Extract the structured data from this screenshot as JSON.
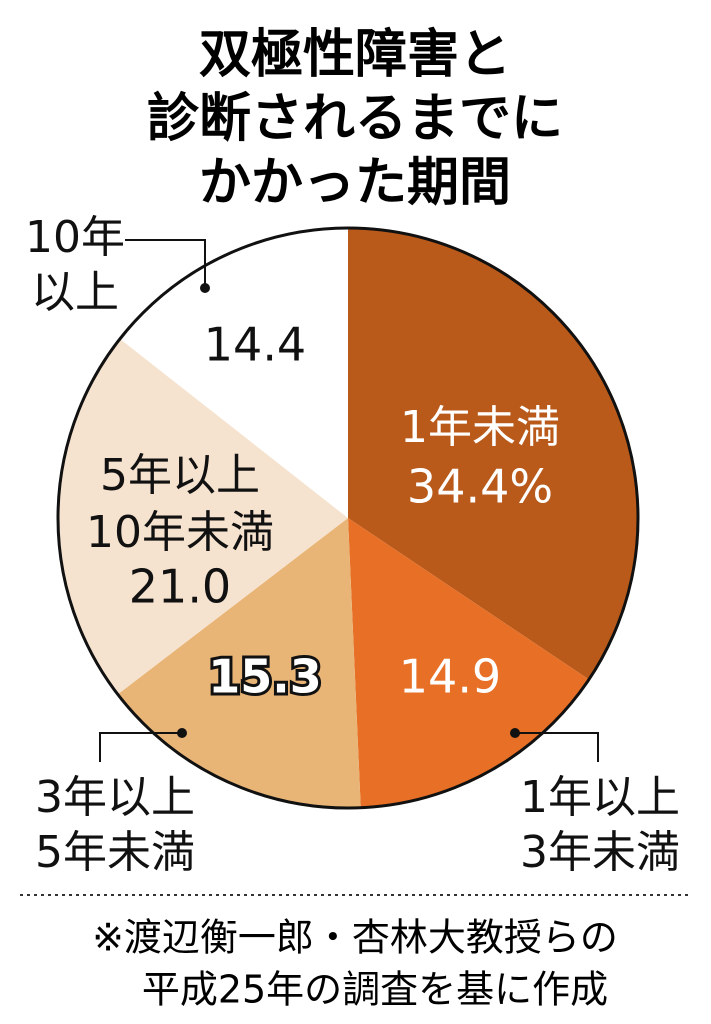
{
  "chart_data": {
    "type": "pie",
    "title": [
      "双極性障害と",
      "診断されるまでに",
      "かかった期間"
    ],
    "categories": [
      [
        "1年未満"
      ],
      [
        "1年以上",
        "3年未満"
      ],
      [
        "3年以上",
        "5年未満"
      ],
      [
        "5年以上",
        "10年未満"
      ],
      [
        "10年",
        "以上"
      ]
    ],
    "values": [
      34.4,
      14.9,
      15.3,
      21.0,
      14.4
    ],
    "value_labels": [
      "34.4%",
      "14.9",
      "15.3",
      "21.0",
      "14.4"
    ],
    "colors": [
      "#b95a1b",
      "#e87026",
      "#e9b577",
      "#f6e3cf",
      "#ffffff"
    ],
    "note": [
      "※渡辺衡一郎・杏林大教授らの",
      "平成25年の調査を基に作成"
    ]
  }
}
